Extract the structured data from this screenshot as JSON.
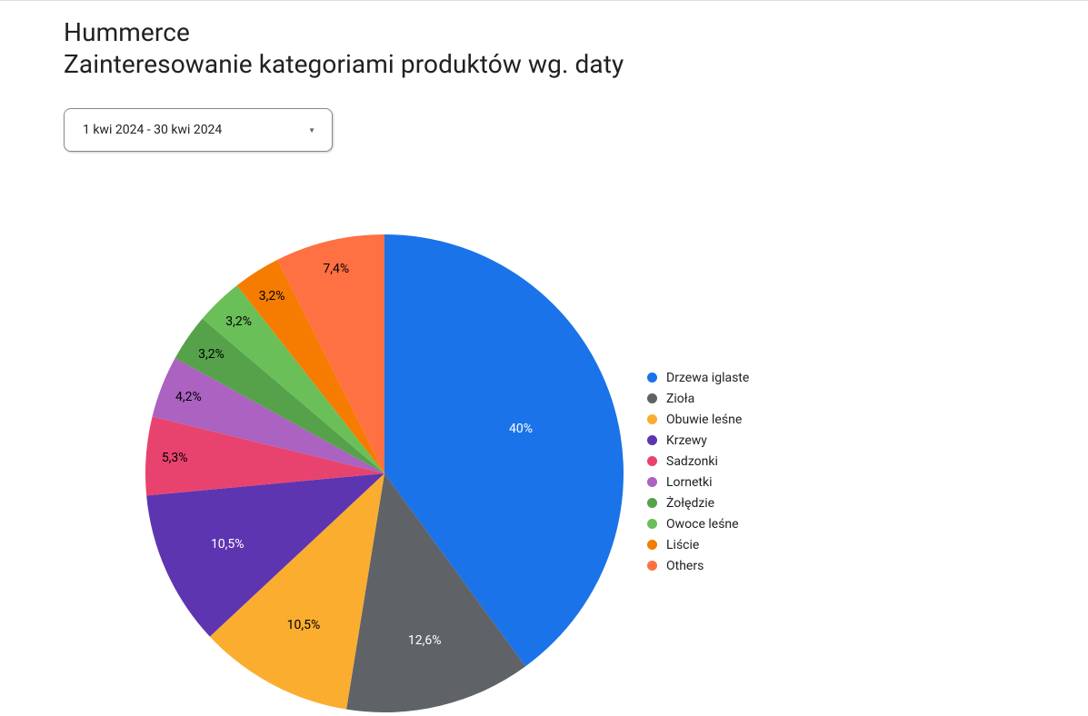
{
  "header": {
    "title1": "Hummerce",
    "title2": "Zainteresowanie kategoriami produktów wg. daty"
  },
  "date_picker": {
    "label": "1 kwi 2024 - 30 kwi 2024"
  },
  "chart": {
    "type": "pie",
    "background_color": "#ffffff",
    "label_fontsize": 14,
    "label_color_dark": "#000000",
    "label_color_light": "#ffffff",
    "radius": 263,
    "slices": [
      {
        "label": "Drzewa iglaste",
        "value": 40.0,
        "display": "40%",
        "color": "#1a73e8",
        "label_color": "#ffffff"
      },
      {
        "label": "Zioła",
        "value": 12.6,
        "display": "12,6%",
        "color": "#5f6368",
        "label_color": "#ffffff"
      },
      {
        "label": "Obuwie leśne",
        "value": 10.5,
        "display": "10,5%",
        "color": "#fbad2f",
        "label_color": "#000000"
      },
      {
        "label": "Krzewy",
        "value": 10.5,
        "display": "10,5%",
        "color": "#5e35b1",
        "label_color": "#ffffff"
      },
      {
        "label": "Sadzonki",
        "value": 5.3,
        "display": "5,3%",
        "color": "#e8436e",
        "label_color": "#000000"
      },
      {
        "label": "Lornetki",
        "value": 4.2,
        "display": "4,2%",
        "color": "#ab62c0",
        "label_color": "#000000"
      },
      {
        "label": "Żołędzie",
        "value": 3.2,
        "display": "3,2%",
        "color": "#55a24a",
        "label_color": "#000000"
      },
      {
        "label": "Owoce leśne",
        "value": 3.2,
        "display": "3,2%",
        "color": "#6bbf59",
        "label_color": "#000000"
      },
      {
        "label": "Liście",
        "value": 3.2,
        "display": "3,2%",
        "color": "#f57c00",
        "label_color": "#000000"
      },
      {
        "label": "Others",
        "value": 7.4,
        "display": "7,4%",
        "color": "#ff7043",
        "label_color": "#000000"
      }
    ]
  }
}
